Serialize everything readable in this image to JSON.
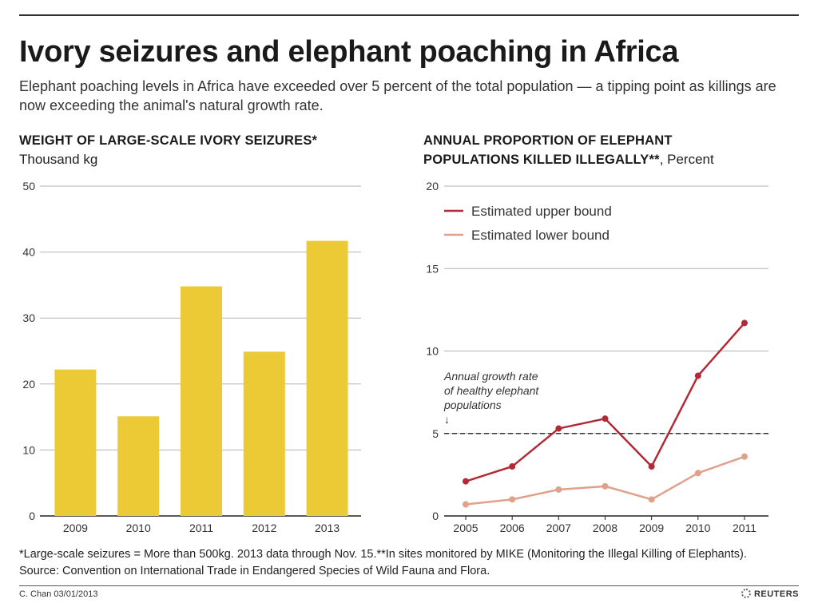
{
  "header": {
    "title": "Ivory seizures and elephant poaching in Africa",
    "subtitle": "Elephant poaching levels in Africa have exceeded over 5 percent of the total population — a tipping point as killings are now exceeding the animal's natural growth rate."
  },
  "colors": {
    "bar": "#ecca35",
    "upper": "#b22a36",
    "lower": "#e0a08a",
    "grid": "#b3b3b3"
  },
  "chart_data": [
    {
      "type": "bar",
      "title": "WEIGHT OF LARGE-SCALE IVORY SEIZURES*",
      "unit_label": "Thousand kg",
      "categories": [
        "2009",
        "2010",
        "2011",
        "2012",
        "2013"
      ],
      "values": [
        22.2,
        15.1,
        34.8,
        24.9,
        41.7
      ],
      "ylim": [
        0,
        50
      ],
      "yticks": [
        "0",
        "10",
        "20",
        "30",
        "40",
        "50"
      ],
      "grid": true
    },
    {
      "type": "line",
      "title_line1": "ANNUAL PROPORTION OF ELEPHANT",
      "title_line2": "POPULATIONS KILLED ILLEGALLY**",
      "unit_label": ", Percent",
      "x": [
        "2005",
        "2006",
        "2007",
        "2008",
        "2009",
        "2010",
        "2011"
      ],
      "series": [
        {
          "name": "Estimated upper bound",
          "values": [
            2.1,
            3.0,
            5.3,
            5.9,
            3.0,
            8.5,
            11.7
          ]
        },
        {
          "name": "Estimated lower bound",
          "values": [
            0.7,
            1.0,
            1.6,
            1.8,
            1.0,
            2.6,
            3.6
          ]
        }
      ],
      "ylim": [
        0,
        20
      ],
      "yticks": [
        "0",
        "5",
        "10",
        "15",
        "20"
      ],
      "reference_line": {
        "value": 5,
        "style": "dashed"
      },
      "annotation": [
        "Annual growth rate",
        "of healthy elephant",
        "populations",
        "↓"
      ],
      "legend_position": "top-left",
      "grid": true
    }
  ],
  "footer": {
    "note_line1": "*Large-scale seizures = More than 500kg. 2013 data through Nov. 15.**In sites monitored by MIKE (Monitoring the Illegal Killing of Elephants).",
    "note_line2": "Source: Convention on International Trade in Endangered Species of Wild Fauna and Flora.",
    "credit": "C. Chan  03/01/2013",
    "brand": "REUTERS"
  }
}
